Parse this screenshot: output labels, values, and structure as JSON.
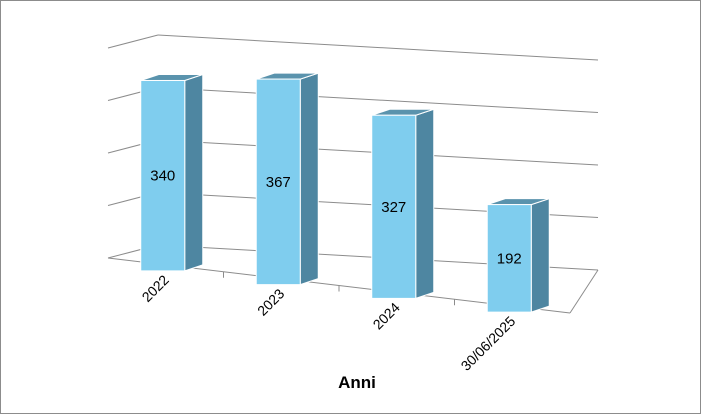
{
  "chart_data": {
    "type": "bar",
    "style": "3d-column",
    "categories": [
      "2022",
      "2023",
      "2024",
      "30/06/2025"
    ],
    "values": [
      340,
      367,
      327,
      192
    ],
    "xlabel": "Anni",
    "ylabel": "",
    "ylim": [
      0,
      400
    ],
    "grid": true,
    "legend": "none",
    "colors": {
      "bar_front": "#7fcdee",
      "bar_side": "#4e86a1",
      "bar_top": "#5a93ad",
      "bar_outline": "#ffffff",
      "grid": "#8c8c8c",
      "frame": "#8c8c8c"
    }
  }
}
